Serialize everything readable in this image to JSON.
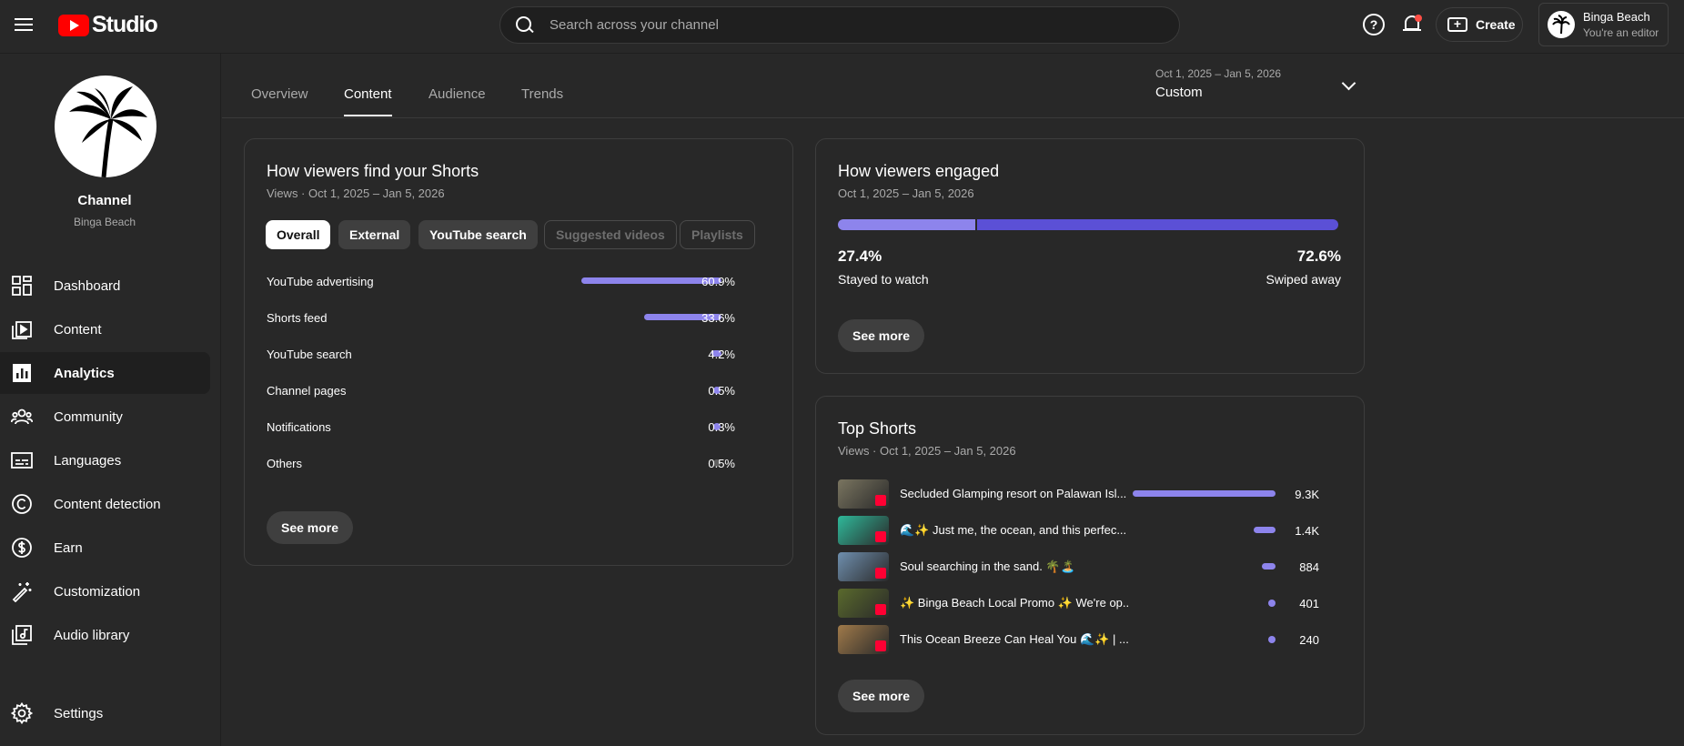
{
  "app": {
    "name": "Studio"
  },
  "search": {
    "placeholder": "Search across your channel"
  },
  "header": {
    "create_label": "Create",
    "account_name": "Binga Beach",
    "account_role": "You're an editor"
  },
  "channel": {
    "title": "Channel",
    "name": "Binga Beach"
  },
  "sidebar": {
    "items": [
      {
        "label": "Dashboard",
        "icon": "dashboard-icon"
      },
      {
        "label": "Content",
        "icon": "content-icon"
      },
      {
        "label": "Analytics",
        "icon": "analytics-icon",
        "active": true
      },
      {
        "label": "Community",
        "icon": "community-icon"
      },
      {
        "label": "Languages",
        "icon": "languages-icon"
      },
      {
        "label": "Content detection",
        "icon": "copyright-icon"
      },
      {
        "label": "Earn",
        "icon": "dollar-icon"
      },
      {
        "label": "Customization",
        "icon": "magic-wand-icon"
      },
      {
        "label": "Audio library",
        "icon": "audio-library-icon"
      }
    ],
    "settings_label": "Settings"
  },
  "tabs": [
    {
      "label": "Overview"
    },
    {
      "label": "Content",
      "active": true
    },
    {
      "label": "Audience"
    },
    {
      "label": "Trends"
    }
  ],
  "date_picker": {
    "range": "Oct 1, 2025 – Jan 5, 2026",
    "label": "Custom"
  },
  "find_shorts": {
    "title": "How viewers find your Shorts",
    "subtitle": "Views · Oct 1, 2025 – Jan 5, 2026",
    "chips": [
      {
        "label": "Overall",
        "state": "selected"
      },
      {
        "label": "External",
        "state": "normal"
      },
      {
        "label": "YouTube search",
        "state": "normal"
      },
      {
        "label": "Suggested videos",
        "state": "disabled"
      },
      {
        "label": "Playlists",
        "state": "disabled"
      }
    ],
    "rows": [
      {
        "label": "YouTube advertising",
        "value": "60.9%",
        "pct": 60.9
      },
      {
        "label": "Shorts feed",
        "value": "33.6%",
        "pct": 33.6
      },
      {
        "label": "YouTube search",
        "value": "4.2%",
        "pct": 4.2
      },
      {
        "label": "Channel pages",
        "value": "0.5%",
        "pct": 0.5
      },
      {
        "label": "Notifications",
        "value": "0.3%",
        "pct": 0.3
      },
      {
        "label": "Others",
        "value": "0.5%",
        "pct": 0.5,
        "color": "#606060"
      }
    ],
    "see_more": "See more"
  },
  "engaged": {
    "title": "How viewers engaged",
    "subtitle": "Oct 1, 2025 – Jan 5, 2026",
    "stayed_pct": "27.4%",
    "stayed_label": "Stayed to watch",
    "stayed_value": 27.4,
    "swiped_pct": "72.6%",
    "swiped_label": "Swiped away",
    "swiped_value": 72.6,
    "see_more": "See more"
  },
  "top_shorts": {
    "title": "Top Shorts",
    "subtitle": "Views · Oct 1, 2025 – Jan 5, 2026",
    "items": [
      {
        "title": "Secluded Glamping resort on Palawan Isl...",
        "views": "9.3K",
        "value": 9300,
        "thumb": "#7a7560"
      },
      {
        "title": "🌊✨ Just me, the ocean, and this perfec...",
        "views": "1.4K",
        "value": 1400,
        "thumb": "#2fb99a"
      },
      {
        "title": "Soul searching in the sand. 🌴🏝️",
        "views": "884",
        "value": 884,
        "thumb": "#6f8fae"
      },
      {
        "title": "✨ Binga Beach Local Promo ✨ We're op...",
        "views": "401",
        "value": 401,
        "thumb": "#5a6a2c"
      },
      {
        "title": "This Ocean Breeze Can Heal You 🌊✨ | ...",
        "views": "240",
        "value": 240,
        "thumb": "#a07a4a"
      }
    ],
    "see_more": "See more"
  },
  "colors": {
    "accent": "#8d84ec",
    "accent_dark": "#5b50d6",
    "brand_red": "#ff0000",
    "bg": "#282828"
  }
}
